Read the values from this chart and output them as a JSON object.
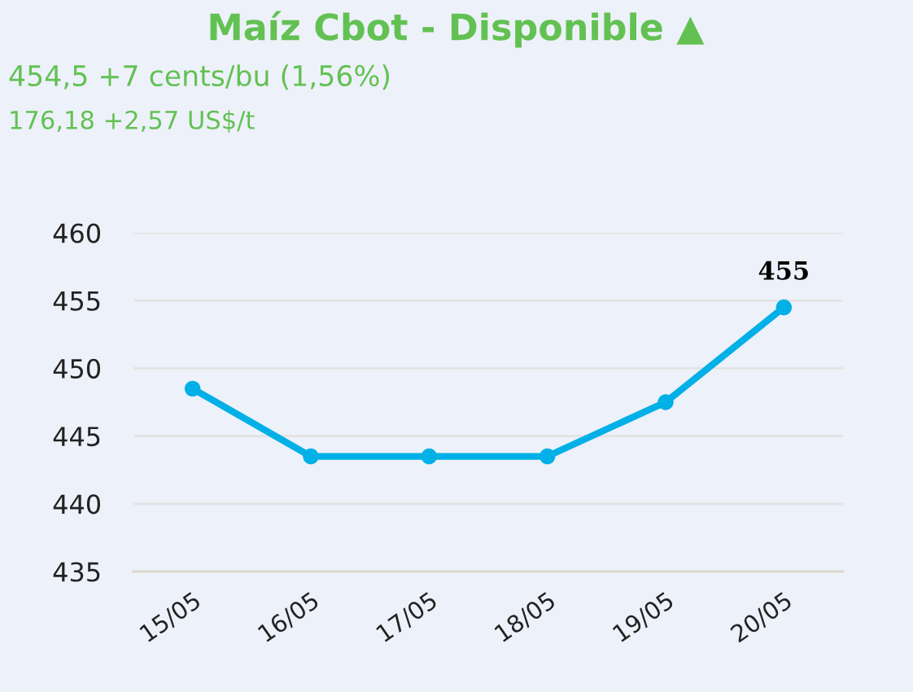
{
  "chart_data": {
    "type": "line",
    "title": "Maíz Cbot - Disponible ▲",
    "subtitle": "454,5 +7 cents/bu (1,56%)",
    "annotations": [
      "176,18 +2,57 US$/t"
    ],
    "categories": [
      "15/05",
      "16/05",
      "17/05",
      "18/05",
      "19/05",
      "20/05"
    ],
    "series": [
      {
        "color": "#00b0e6",
        "values": [
          448.5,
          443.5,
          443.5,
          443.5,
          447.5,
          454.5
        ],
        "value_labels": [
          null,
          null,
          null,
          null,
          null,
          "455"
        ]
      }
    ],
    "ylim": [
      435,
      460
    ],
    "yticks": [
      435,
      440,
      445,
      450,
      455,
      460
    ],
    "grid": "y",
    "marker": "circle",
    "line_style": "solid"
  }
}
